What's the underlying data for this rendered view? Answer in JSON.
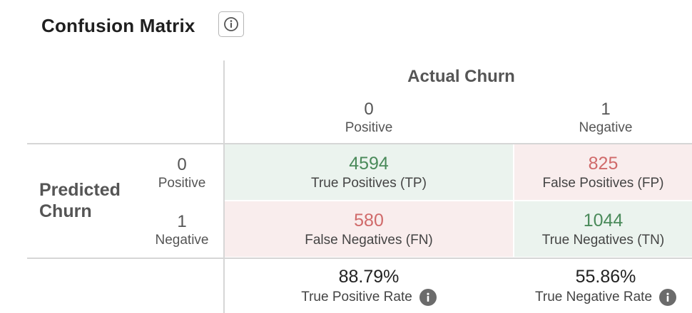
{
  "header": {
    "title": "Confusion Matrix",
    "info_icon": "info-circle-icon"
  },
  "matrix": {
    "actual_title": "Actual Churn",
    "predicted_title_line1": "Predicted",
    "predicted_title_line2": "Churn",
    "columns": [
      {
        "value": "0",
        "label": "Positive"
      },
      {
        "value": "1",
        "label": "Negative"
      }
    ],
    "rows": [
      {
        "value": "0",
        "label": "Positive"
      },
      {
        "value": "1",
        "label": "Negative"
      }
    ],
    "cells": {
      "tp": {
        "value": "4594",
        "label": "True Positives (TP)"
      },
      "fp": {
        "value": "825",
        "label": "False Positives (FP)"
      },
      "fn": {
        "value": "580",
        "label": "False Negatives (FN)"
      },
      "tn": {
        "value": "1044",
        "label": "True Negatives (TN)"
      }
    },
    "rates": [
      {
        "value": "88.79%",
        "label": "True Positive Rate",
        "icon": "info-icon"
      },
      {
        "value": "55.86%",
        "label": "True Negative Rate",
        "icon": "info-icon"
      }
    ]
  },
  "colors": {
    "correct_bg": "#ebf3ee",
    "correct_text": "#4a8a5a",
    "error_bg": "#f9eded",
    "error_text": "#d06a6a"
  }
}
